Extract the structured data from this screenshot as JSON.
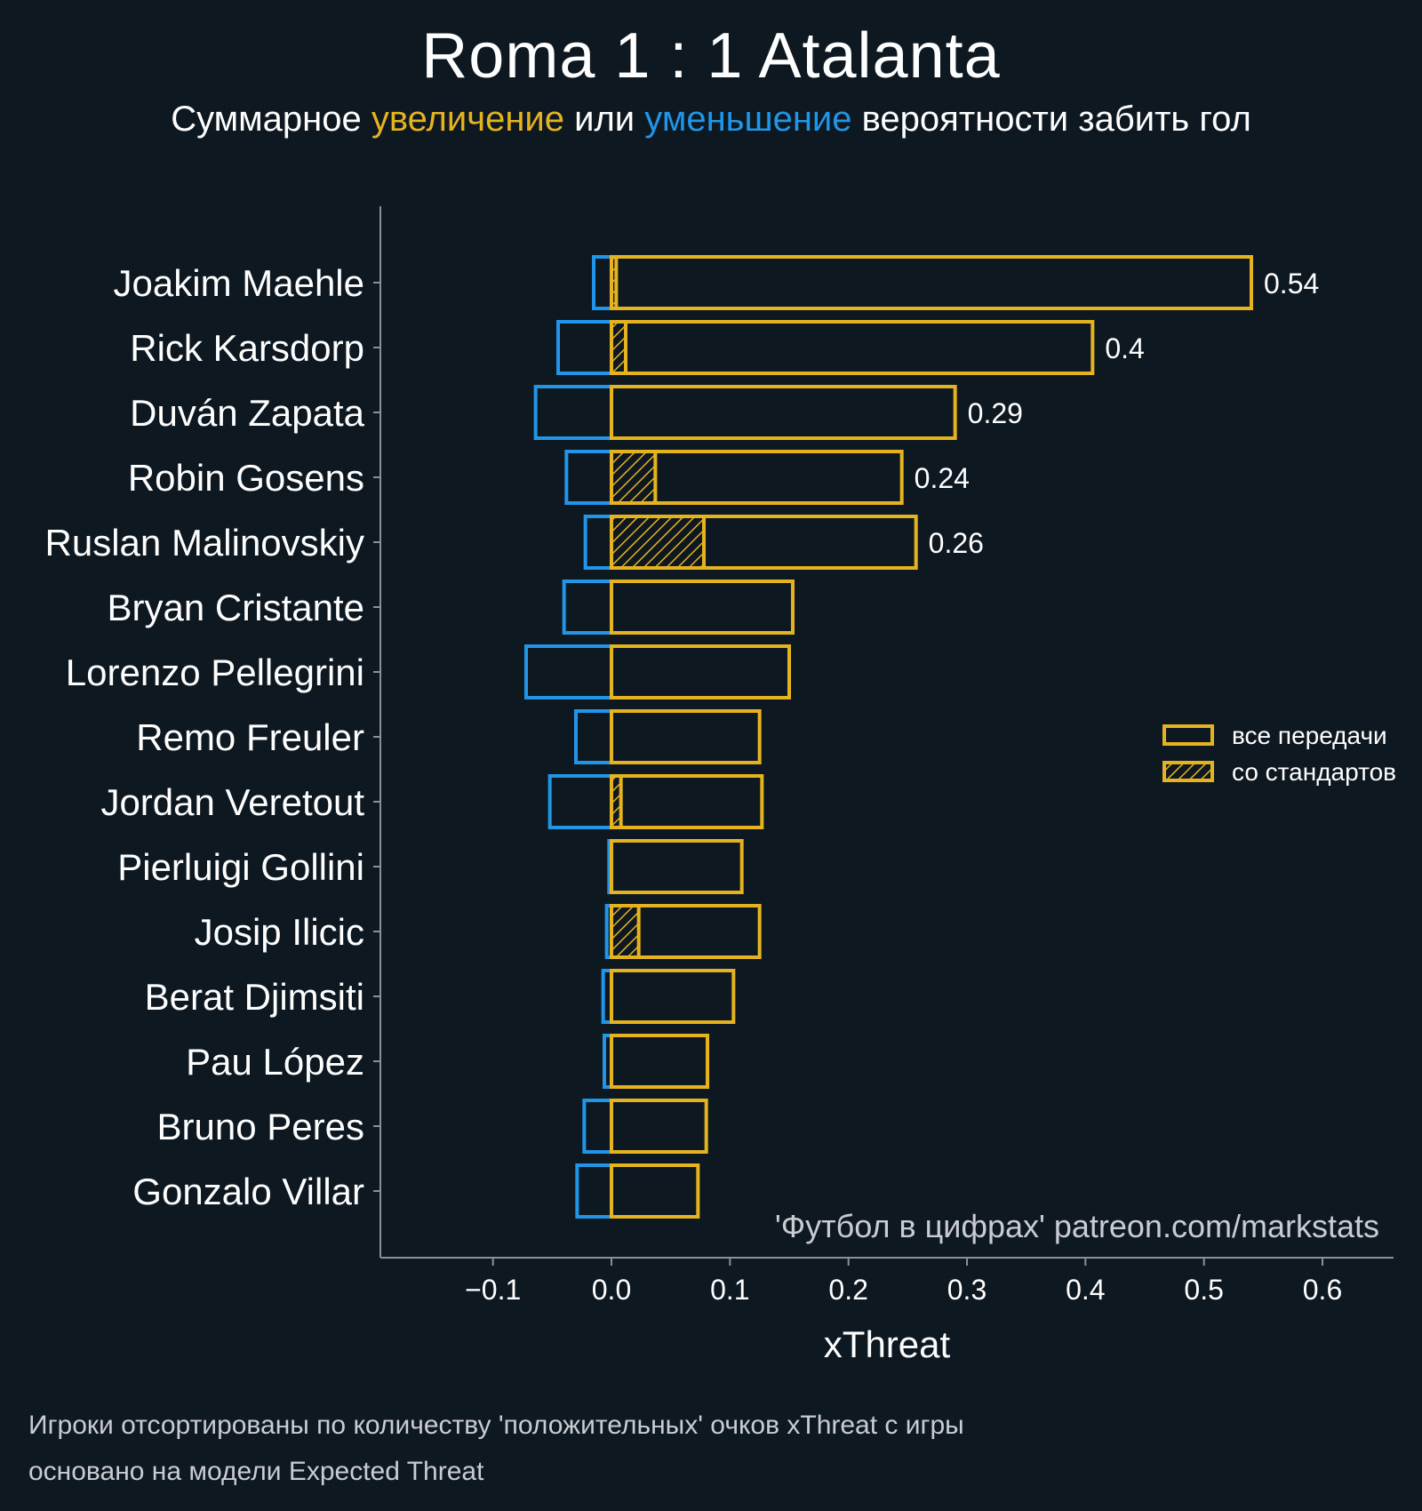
{
  "chart_data": {
    "type": "bar",
    "title": "Roma 1 : 1 Atalanta",
    "subtitle": {
      "prefix": "Суммарное ",
      "increase": "увеличение",
      "middle": " или ",
      "decrease": "уменьшение",
      "suffix": " вероятности забить гол"
    },
    "xlabel": "xThreat",
    "xlim": [
      -0.195,
      0.66
    ],
    "xticks": [
      -0.1,
      0.0,
      0.1,
      0.2,
      0.3,
      0.4,
      0.5,
      0.6
    ],
    "xtick_labels": [
      "−0.1",
      "0.0",
      "0.1",
      "0.2",
      "0.3",
      "0.4",
      "0.5",
      "0.6"
    ],
    "categories": [
      "Joakim Maehle",
      "Rick Karsdorp",
      "Duván Zapata",
      "Robin Gosens",
      "Ruslan Malinovskiy",
      "Bryan Cristante",
      "Lorenzo Pellegrini",
      "Remo Freuler",
      "Jordan Veretout",
      "Pierluigi Gollini",
      "Josip Ilicic",
      "Berat Djimsiti",
      "Pau López",
      "Bruno Peres",
      "Gonzalo Villar"
    ],
    "series": [
      {
        "name": "все передачи",
        "values": [
          0.54,
          0.406,
          0.29,
          0.245,
          0.257,
          0.153,
          0.15,
          0.125,
          0.127,
          0.11,
          0.125,
          0.103,
          0.081,
          0.08,
          0.073
        ]
      },
      {
        "name": "со стандартов",
        "values": [
          0.004,
          0.012,
          0.0,
          0.037,
          0.078,
          0.0,
          0.0,
          0.0,
          0.008,
          0.0,
          0.023,
          0.0,
          0.0,
          0.0,
          0.0
        ]
      },
      {
        "values": [
          -0.015,
          -0.045,
          -0.064,
          -0.038,
          -0.022,
          -0.04,
          -0.072,
          -0.03,
          -0.052,
          -0.002,
          -0.004,
          -0.007,
          -0.006,
          -0.023,
          -0.029
        ]
      }
    ],
    "data_labels": [
      "0.54",
      "0.4",
      "0.29",
      "0.24",
      "0.26"
    ],
    "legend": {
      "placement": "right",
      "items": [
        "все передачи",
        "со стандартов"
      ]
    },
    "watermark": "'Футбол в цифрах' patreon.com/markstats",
    "colors": {
      "background": "#0e1821",
      "positive": "#e6b320",
      "negative": "#2196e8",
      "axis": "#8a9099",
      "text": "#ffffff",
      "muted": "#c9ccd0"
    },
    "grid": false
  },
  "footnote": {
    "line1": "Игроки отсортированы по количеству 'положительных' очков xThreat с игры",
    "line2": "основано на модели Expected Threat"
  }
}
